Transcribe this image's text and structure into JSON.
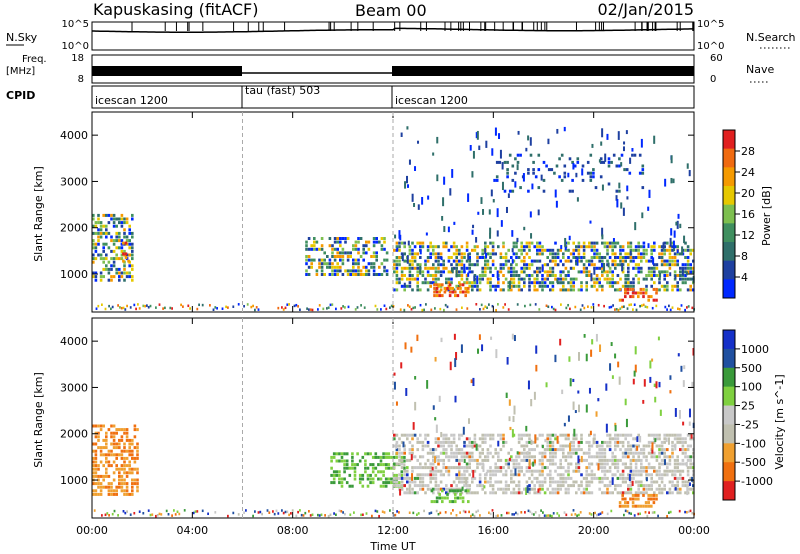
{
  "header": {
    "station": "Kapuskasing (fitACF)",
    "beam": "Beam 00",
    "date": "02/Jan/2015"
  },
  "noise_panel": {
    "left_label": "N.Sky",
    "right_label": "N.Search",
    "left_ticks": [
      "10^5",
      "10^0"
    ],
    "right_ticks": [
      "10^5",
      "10^0"
    ]
  },
  "freq_panel": {
    "left_label_1": "Freq.",
    "left_label_2": "[MHz]",
    "right_label": "Nave",
    "left_ticks": [
      "18",
      "8"
    ],
    "right_ticks": [
      "60",
      "0"
    ]
  },
  "cpid_panel": {
    "label": "CPID",
    "segments": [
      {
        "name": "icescan 1200",
        "start_hour": 0,
        "end_hour": 6
      },
      {
        "name": "tau (fast) 503",
        "start_hour": 6,
        "end_hour": 12
      },
      {
        "name": "icescan 1200",
        "start_hour": 12,
        "end_hour": 24
      }
    ]
  },
  "colors": {
    "power": [
      "#0028ff",
      "#1e40a0",
      "#2f6f6a",
      "#3f8f5f",
      "#7dbf4f",
      "#e6c800",
      "#f59a00",
      "#f06a10",
      "#e02020"
    ],
    "velocity": [
      "#1530c8",
      "#2050a0",
      "#3a9a3a",
      "#7fd040",
      "#c8c8c8",
      "#c0c0b0",
      "#f0a030",
      "#f07010",
      "#e02020"
    ]
  },
  "chart_data": [
    {
      "type": "heatmap",
      "title": "",
      "ylabel": "Slant Range [km]",
      "xlabel": "Time UT",
      "x_ticks": [
        "00:00",
        "04:00",
        "08:00",
        "12:00",
        "16:00",
        "20:00",
        "00:00"
      ],
      "y_ticks": [
        "1000",
        "2000",
        "3000",
        "4000"
      ],
      "xlim_hours": [
        0,
        24
      ],
      "ylim_km": [
        180,
        4500
      ],
      "colorbar": {
        "label": "Power [dB]",
        "ticks": [
          "4",
          "8",
          "12",
          "16",
          "20",
          "24",
          "28"
        ]
      },
      "regions": [
        {
          "t0": 0.0,
          "t1": 1.6,
          "r0": 900,
          "r1": 2300,
          "level": "mixed"
        },
        {
          "t0": 1.2,
          "t1": 1.5,
          "r0": 1300,
          "r1": 1700,
          "level": "high"
        },
        {
          "t0": 8.5,
          "t1": 11.8,
          "r0": 1000,
          "r1": 1800,
          "level": "mixed"
        },
        {
          "t0": 12.0,
          "t1": 24.0,
          "r0": 650,
          "r1": 1700,
          "level": "mixed"
        },
        {
          "t0": 13.5,
          "t1": 15.0,
          "r0": 500,
          "r1": 800,
          "level": "high"
        },
        {
          "t0": 21.0,
          "t1": 22.5,
          "r0": 450,
          "r1": 700,
          "level": "high"
        },
        {
          "t0": 16.0,
          "t1": 22.0,
          "r0": 2800,
          "r1": 3600,
          "level": "low"
        }
      ]
    },
    {
      "type": "heatmap",
      "title": "",
      "ylabel": "Slant Range [km]",
      "xlabel": "Time UT",
      "x_ticks": [
        "00:00",
        "04:00",
        "08:00",
        "12:00",
        "16:00",
        "20:00",
        "00:00"
      ],
      "y_ticks": [
        "1000",
        "2000",
        "3000",
        "4000"
      ],
      "xlim_hours": [
        0,
        24
      ],
      "ylim_km": [
        180,
        4500
      ],
      "colorbar": {
        "label": "Velocity [m s^-1]",
        "ticks": [
          "1000",
          "500",
          "100",
          "25",
          "-25",
          "-100",
          "-500",
          "-1000"
        ]
      },
      "regions": [
        {
          "t0": 0.0,
          "t1": 1.8,
          "r0": 700,
          "r1": 2200,
          "level": "negative"
        },
        {
          "t0": 9.5,
          "t1": 12.5,
          "r0": 900,
          "r1": 1600,
          "level": "positive"
        },
        {
          "t0": 12.0,
          "t1": 24.0,
          "r0": 700,
          "r1": 2000,
          "level": "near-zero"
        },
        {
          "t0": 13.5,
          "t1": 15.0,
          "r0": 500,
          "r1": 800,
          "level": "positive"
        },
        {
          "t0": 21.0,
          "t1": 22.5,
          "r0": 450,
          "r1": 700,
          "level": "negative"
        }
      ]
    }
  ]
}
